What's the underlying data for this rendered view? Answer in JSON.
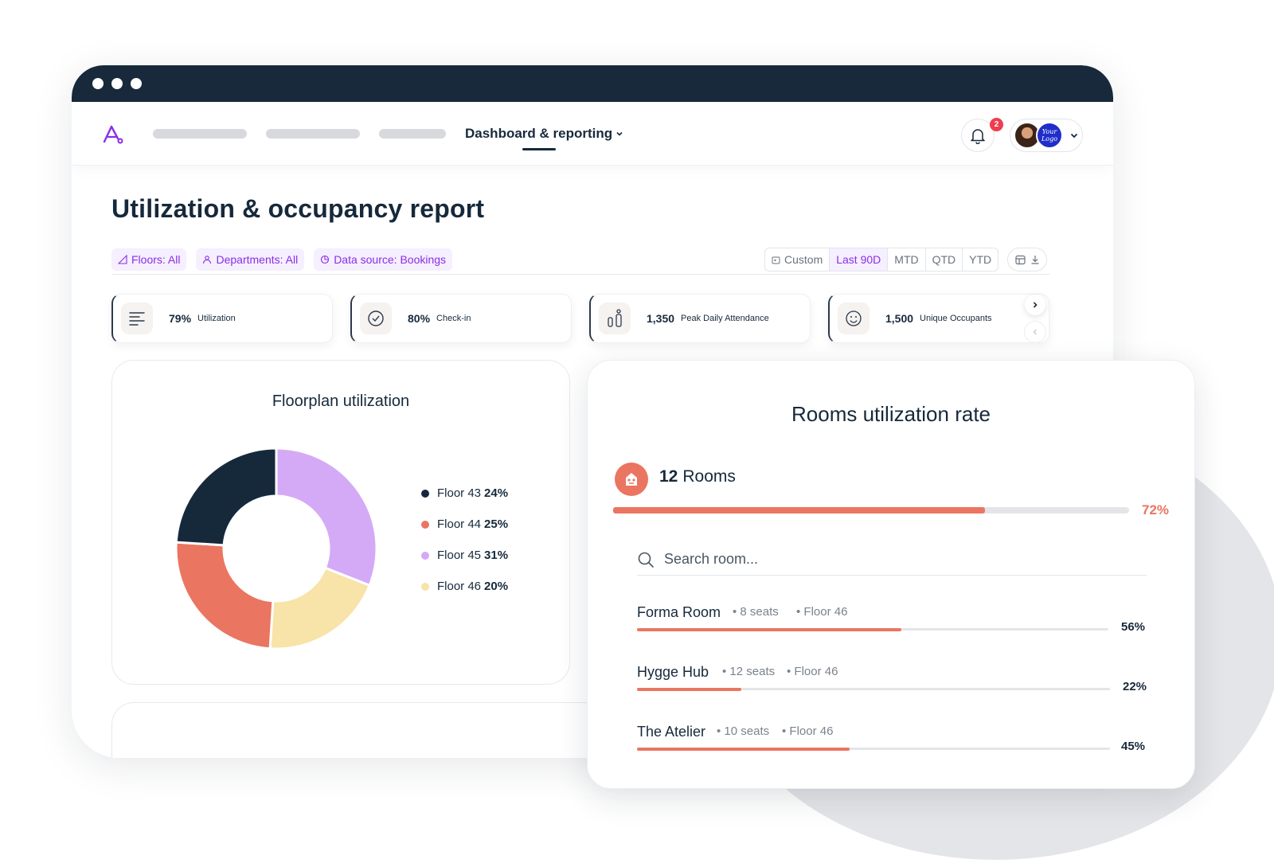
{
  "nav": {
    "active_label": "Dashboard & reporting",
    "notification_count": "2",
    "brand_logo_text": "Your Logo"
  },
  "report": {
    "title": "Utilization & occupancy report",
    "filters": [
      "Floors: All",
      "Departments: All",
      "Data source: Bookings"
    ],
    "date_ranges": [
      "Custom",
      "Last 90D",
      "MTD",
      "QTD",
      "YTD"
    ],
    "selected_range": "Last 90D"
  },
  "kpis": [
    {
      "value": "79%",
      "label": "Utilization",
      "icon": "list-icon"
    },
    {
      "value": "80%",
      "label": "Check-in",
      "icon": "check-circle-icon"
    },
    {
      "value": "1,350",
      "label": "Peak Daily Attendance",
      "icon": "people-icon"
    },
    {
      "value": "1,500",
      "label": "Unique Occupants",
      "icon": "face-icon"
    }
  ],
  "floorplan": {
    "title": "Floorplan utilization",
    "legend": [
      {
        "name": "Floor 43",
        "pct": "24%"
      },
      {
        "name": "Floor 44",
        "pct": "25%"
      },
      {
        "name": "Floor 45",
        "pct": "31%"
      },
      {
        "name": "Floor 46",
        "pct": "20%"
      }
    ]
  },
  "chart_data": {
    "type": "pie",
    "categories": [
      "Floor 43",
      "Floor 44",
      "Floor 45",
      "Floor 46"
    ],
    "values": [
      24,
      25,
      31,
      20
    ],
    "colors": [
      "#16293b",
      "#ea7561",
      "#d4aaf7",
      "#f8e3a8"
    ],
    "title": "Floorplan utilization",
    "legend": "right"
  },
  "rooms": {
    "title": "Rooms utilization rate",
    "count": "12",
    "count_label": "Rooms",
    "overall_pct": "72%",
    "overall_value": 0.72,
    "search_placeholder": "Search room...",
    "list": [
      {
        "name": "Forma Room",
        "seats": "8 seats",
        "floor": "Floor 46",
        "pct": "56%",
        "value": 0.56
      },
      {
        "name": "Hygge Hub",
        "seats": "12 seats",
        "floor": "Floor 46",
        "pct": "22%",
        "value": 0.22
      },
      {
        "name": "The Atelier",
        "seats": "10 seats",
        "floor": "Floor 46",
        "pct": "45%",
        "value": 0.45
      }
    ]
  },
  "colors": {
    "navy": "#16293b",
    "accent_purple": "#8a2ee6",
    "coral": "#ea7561",
    "alert_red": "#ef3d4d"
  }
}
